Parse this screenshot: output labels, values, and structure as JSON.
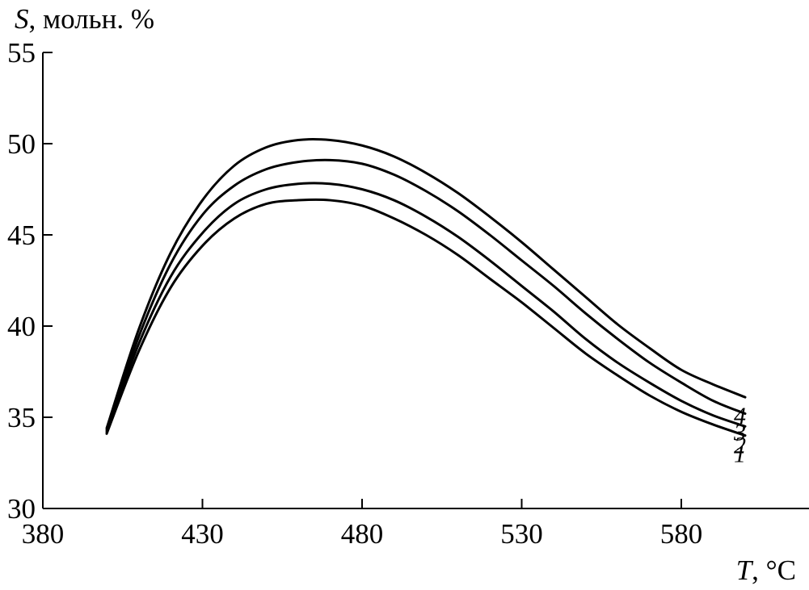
{
  "chart_data": {
    "type": "line",
    "ylabel_var": "S",
    "ylabel_unit": ", мольн. %",
    "xlabel_var": "T",
    "xlabel_unit": ", °C",
    "xlim": [
      380,
      620
    ],
    "ylim": [
      30,
      55
    ],
    "x_ticks": [
      380,
      430,
      480,
      530,
      580
    ],
    "y_ticks": [
      30,
      35,
      40,
      45,
      50,
      55
    ],
    "grid": false,
    "x": [
      400,
      410,
      420,
      430,
      440,
      450,
      460,
      470,
      480,
      490,
      500,
      510,
      520,
      530,
      540,
      550,
      560,
      570,
      580,
      590,
      600
    ],
    "series": [
      {
        "label": "1",
        "values": [
          34.1,
          38.6,
          42.1,
          44.4,
          45.9,
          46.7,
          46.9,
          46.9,
          46.6,
          45.9,
          45.0,
          43.9,
          42.6,
          41.3,
          39.9,
          38.5,
          37.3,
          36.2,
          35.3,
          34.6,
          34.0
        ]
      },
      {
        "label": "2",
        "values": [
          34.2,
          39.0,
          42.7,
          45.1,
          46.7,
          47.5,
          47.8,
          47.8,
          47.5,
          46.9,
          46.0,
          44.9,
          43.6,
          42.2,
          40.8,
          39.3,
          38.0,
          36.9,
          35.9,
          35.1,
          34.5
        ]
      },
      {
        "label": "3",
        "values": [
          34.3,
          39.4,
          43.4,
          46.1,
          47.7,
          48.6,
          49.0,
          49.1,
          48.9,
          48.3,
          47.4,
          46.3,
          45.0,
          43.6,
          42.2,
          40.7,
          39.3,
          38.0,
          36.9,
          35.9,
          35.2
        ]
      },
      {
        "label": "4",
        "values": [
          34.4,
          39.8,
          44.0,
          46.9,
          48.8,
          49.8,
          50.2,
          50.2,
          49.9,
          49.3,
          48.4,
          47.3,
          46.0,
          44.6,
          43.1,
          41.6,
          40.1,
          38.8,
          37.6,
          36.8,
          36.1
        ]
      }
    ]
  }
}
